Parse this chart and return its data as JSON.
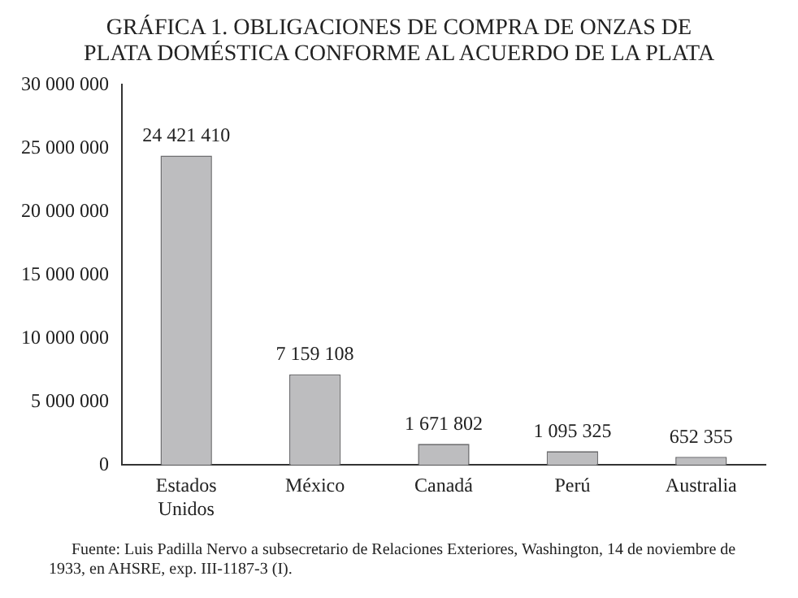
{
  "chart_data": {
    "type": "bar",
    "title": "GRÁFICA 1. OBLIGACIONES DE COMPRA DE ONZAS DE PLATA DOMÉSTICA CONFORME AL ACUERDO DE LA PLATA",
    "categories": [
      "Estados Unidos",
      "México",
      "Canadá",
      "Perú",
      "Australia"
    ],
    "values": [
      24421410,
      7159108,
      1671802,
      1095325,
      652355
    ],
    "color": "#bdbdbf",
    "value_labels": [
      "24 421 410",
      "7 159 108",
      "1 671 802",
      "1 095 325",
      "652 355"
    ],
    "ylim": [
      0,
      30000000
    ],
    "yticks": [
      {
        "value": 0,
        "label": "0"
      },
      {
        "value": 5000000,
        "label": "5 000 000"
      },
      {
        "value": 10000000,
        "label": "10 000 000"
      },
      {
        "value": 15000000,
        "label": "15 000 000"
      },
      {
        "value": 20000000,
        "label": "20 000 000"
      },
      {
        "value": 25000000,
        "label": "25 000 000"
      },
      {
        "value": 30000000,
        "label": "30 000 000"
      }
    ],
    "grid": false,
    "legend": false,
    "annotations": [
      "Fuente: Luis Padilla Nervo a subsecretario de Relaciones Exteriores, Washington, 14 de noviembre de 1933, en AHSRE, exp. III-1187-3 (I)."
    ]
  }
}
